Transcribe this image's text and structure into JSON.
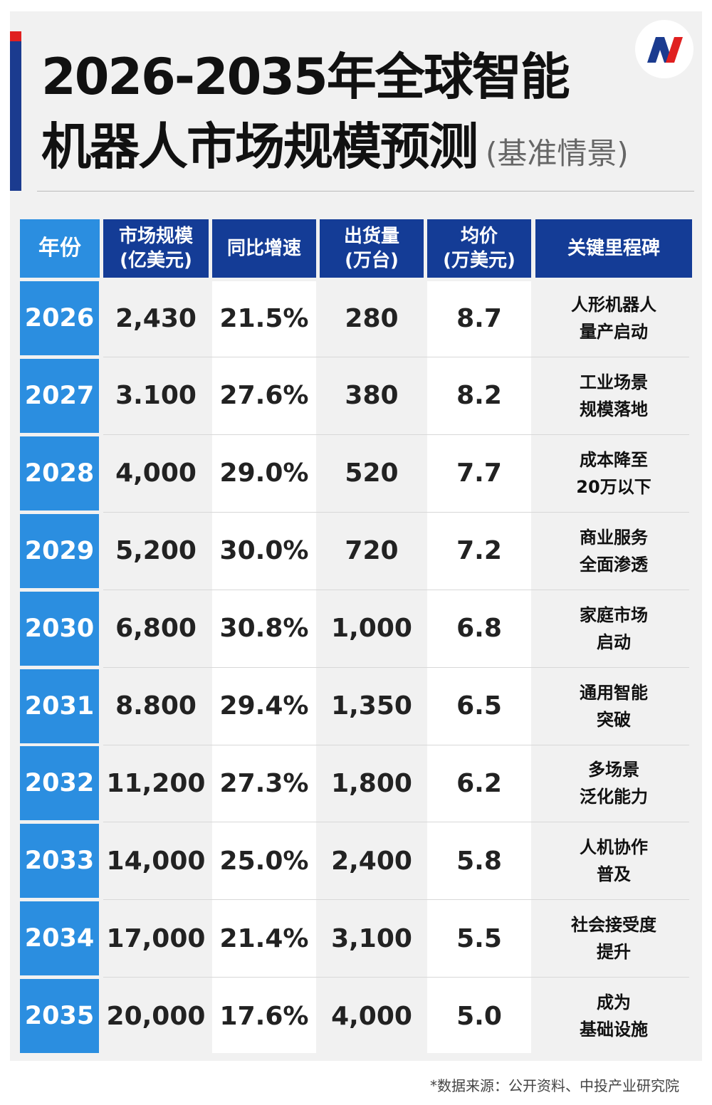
{
  "title": {
    "line1": "2026-2035年全球智能",
    "line2": "机器人市场规模预测",
    "subtitle": "(基准情景)"
  },
  "logo": {
    "icon": "brand-logo-icon",
    "colors": [
      "#1b3b8f",
      "#e02020"
    ]
  },
  "table": {
    "headers": [
      "年份",
      "市场规模\n(亿美元)",
      "同比增速",
      "出货量\n(万台)",
      "均价\n(万美元)",
      "关键里程碑"
    ],
    "rows": [
      {
        "year": "2026",
        "market": "2,430",
        "growth": "21.5%",
        "shipments": "280",
        "price": "8.7",
        "milestone": "人形机器人\n量产启动"
      },
      {
        "year": "2027",
        "market": "3.100",
        "growth": "27.6%",
        "shipments": "380",
        "price": "8.2",
        "milestone": "工业场景\n规模落地"
      },
      {
        "year": "2028",
        "market": "4,000",
        "growth": "29.0%",
        "shipments": "520",
        "price": "7.7",
        "milestone": "成本降至\n20万以下"
      },
      {
        "year": "2029",
        "market": "5,200",
        "growth": "30.0%",
        "shipments": "720",
        "price": "7.2",
        "milestone": "商业服务\n全面渗透"
      },
      {
        "year": "2030",
        "market": "6,800",
        "growth": "30.8%",
        "shipments": "1,000",
        "price": "6.8",
        "milestone": "家庭市场\n启动"
      },
      {
        "year": "2031",
        "market": "8.800",
        "growth": "29.4%",
        "shipments": "1,350",
        "price": "6.5",
        "milestone": "通用智能\n突破"
      },
      {
        "year": "2032",
        "market": "11,200",
        "growth": "27.3%",
        "shipments": "1,800",
        "price": "6.2",
        "milestone": "多场景\n泛化能力"
      },
      {
        "year": "2033",
        "market": "14,000",
        "growth": "25.0%",
        "shipments": "2,400",
        "price": "5.8",
        "milestone": "人机协作\n普及"
      },
      {
        "year": "2034",
        "market": "17,000",
        "growth": "21.4%",
        "shipments": "3,100",
        "price": "5.5",
        "milestone": "社会接受度\n提升"
      },
      {
        "year": "2035",
        "market": "20,000",
        "growth": "17.6%",
        "shipments": "4,000",
        "price": "5.0",
        "milestone": "成为\n基础设施"
      }
    ]
  },
  "footer": {
    "source": "*数据来源：公开资料、中投产业研究院"
  }
}
